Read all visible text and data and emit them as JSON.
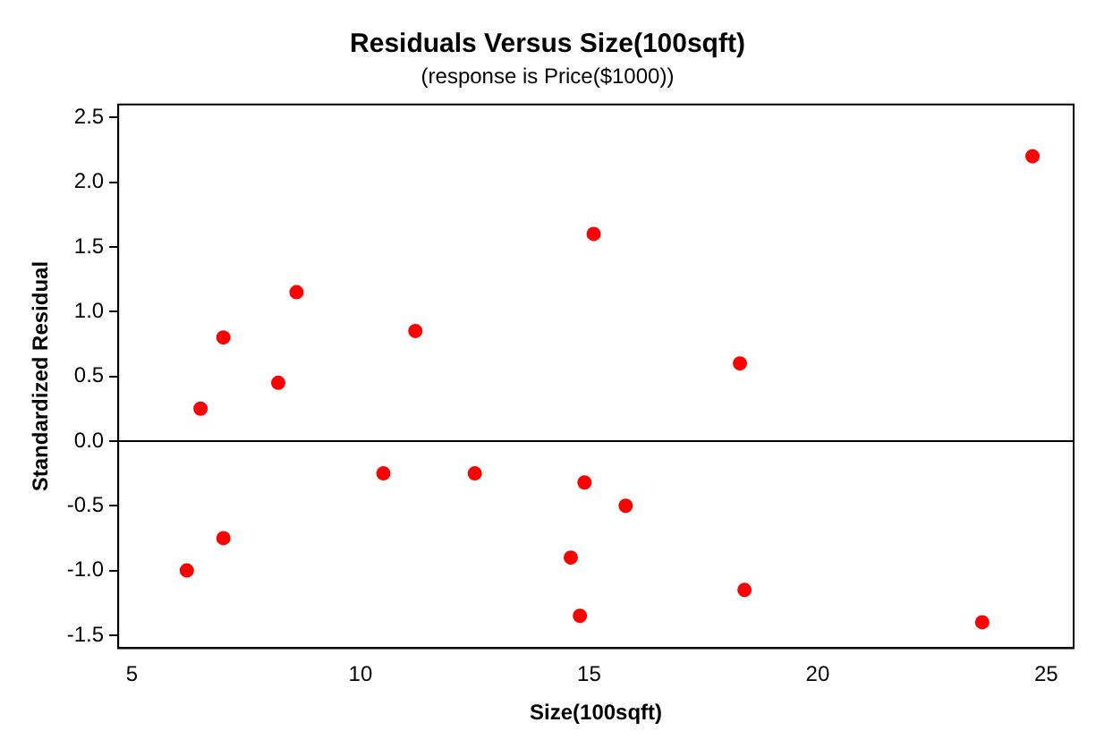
{
  "chart_data": {
    "type": "scatter",
    "title": "Residuals Versus Size(100sqft)",
    "subtitle": "(response is Price($1000))",
    "xlabel": "Size(100sqft)",
    "ylabel": "Standardized Residual",
    "x": [
      6.2,
      6.5,
      7.0,
      7.0,
      8.2,
      8.6,
      10.5,
      11.2,
      12.5,
      14.6,
      14.8,
      14.9,
      15.1,
      15.8,
      18.3,
      18.4,
      23.6,
      24.7
    ],
    "series": [
      {
        "color": "#ff0000",
        "values": [
          -1.0,
          0.25,
          0.8,
          -0.75,
          0.45,
          1.15,
          -0.25,
          0.85,
          -0.25,
          -0.9,
          -1.35,
          -0.32,
          1.6,
          -0.5,
          0.6,
          -1.15,
          -1.4,
          2.2
        ]
      }
    ],
    "xlim": [
      4.7,
      25.6
    ],
    "xticks": [
      5,
      10,
      15,
      20,
      25
    ],
    "ylim": [
      -1.6,
      2.6
    ],
    "yticks": [
      -1.5,
      {
        "value": -1,
        "label": "-1.0"
      },
      -0.5,
      {
        "value": 0,
        "label": "0.0"
      },
      0.5,
      {
        "value": 1,
        "label": "1.0"
      },
      1.5,
      {
        "value": 2,
        "label": "2.0"
      },
      2.5
    ],
    "ref_lines": [
      {
        "axis": "y",
        "value": 0,
        "color": "#000000"
      }
    ],
    "grid": false,
    "legend": false,
    "marker": "circle"
  }
}
